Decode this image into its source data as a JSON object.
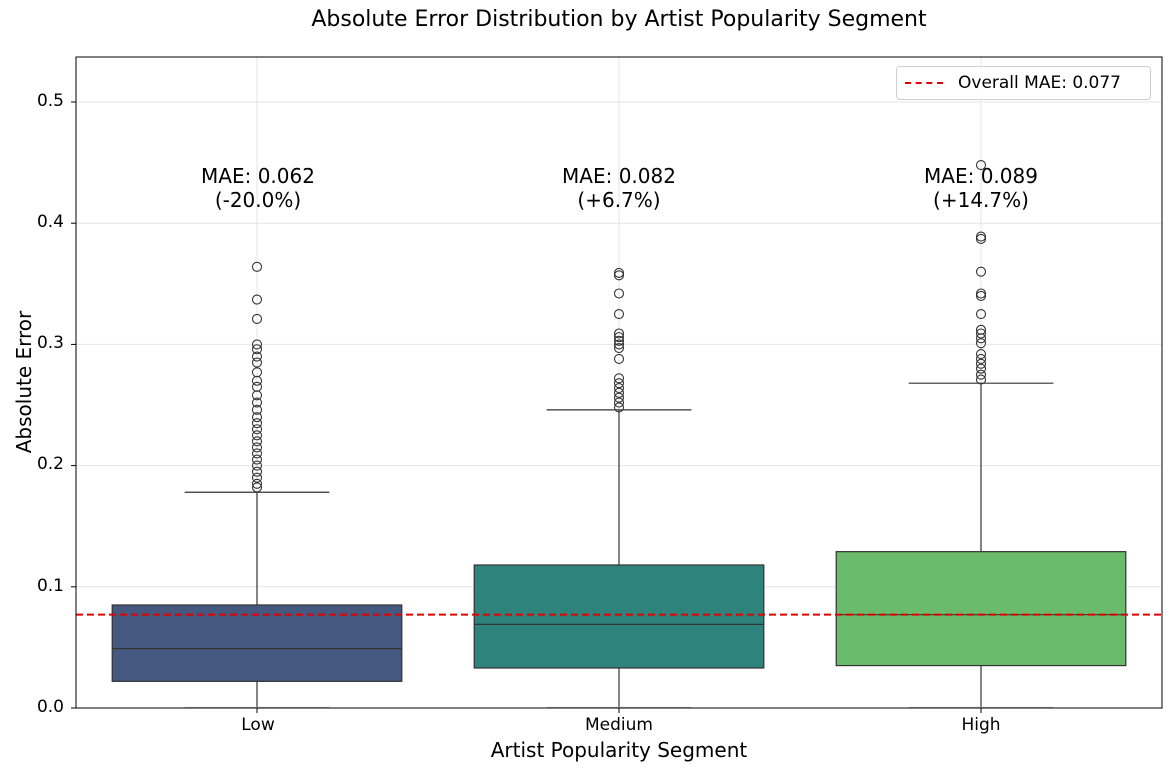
{
  "chart_data": {
    "type": "box",
    "title": "Absolute Error Distribution by Artist Popularity Segment",
    "xlabel": "Artist Popularity Segment",
    "ylabel": "Absolute Error",
    "ylim": [
      0.0,
      0.54
    ],
    "yticks": [
      "0.0",
      "0.1",
      "0.2",
      "0.3",
      "0.4",
      "0.5"
    ],
    "grid": true,
    "categories": [
      "Low",
      "Medium",
      "High"
    ],
    "colors": [
      "#45587f",
      "#2e837c",
      "#6abc6c"
    ],
    "boxes": [
      {
        "name": "Low",
        "whisker_low": 0.0,
        "q1": 0.022,
        "median": 0.049,
        "q3": 0.085,
        "whisker_high": 0.178,
        "outliers": [
          0.182,
          0.185,
          0.19,
          0.195,
          0.2,
          0.205,
          0.21,
          0.215,
          0.22,
          0.225,
          0.23,
          0.235,
          0.24,
          0.246,
          0.252,
          0.258,
          0.265,
          0.27,
          0.277,
          0.285,
          0.29,
          0.296,
          0.3,
          0.321,
          0.337,
          0.364
        ]
      },
      {
        "name": "Medium",
        "whisker_low": 0.0,
        "q1": 0.033,
        "median": 0.069,
        "q3": 0.118,
        "whisker_high": 0.246,
        "outliers": [
          0.248,
          0.252,
          0.256,
          0.26,
          0.264,
          0.268,
          0.272,
          0.288,
          0.297,
          0.3,
          0.303,
          0.306,
          0.309,
          0.325,
          0.342,
          0.357,
          0.359
        ]
      },
      {
        "name": "High",
        "whisker_low": 0.0,
        "q1": 0.035,
        "median": 0.077,
        "q3": 0.129,
        "whisker_high": 0.268,
        "outliers": [
          0.271,
          0.275,
          0.28,
          0.284,
          0.288,
          0.292,
          0.301,
          0.305,
          0.309,
          0.312,
          0.325,
          0.34,
          0.342,
          0.36,
          0.387,
          0.389,
          0.448
        ]
      }
    ],
    "reference_line": {
      "label": "Overall MAE: 0.077",
      "value": 0.077,
      "color": "#e00000",
      "style": "dashed"
    },
    "annotations": [
      {
        "category": "Low",
        "line1": "MAE: 0.062",
        "line2": "(-20.0%)"
      },
      {
        "category": "Medium",
        "line1": "MAE: 0.082",
        "line2": "(+6.7%)"
      },
      {
        "category": "High",
        "line1": "MAE: 0.089",
        "line2": "(+14.7%)"
      }
    ],
    "legend_position": "upper right"
  }
}
